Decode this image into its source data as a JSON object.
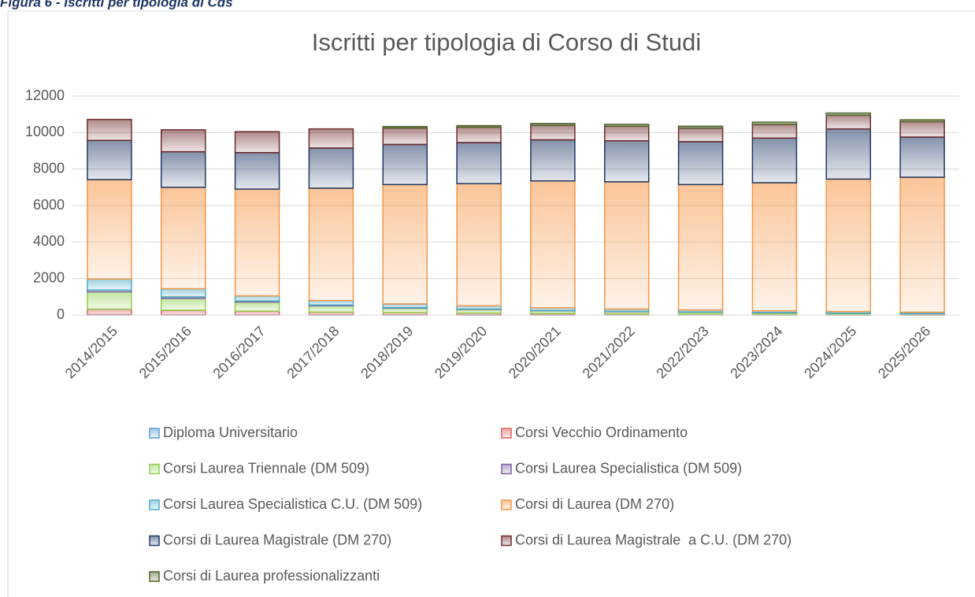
{
  "caption": "Figura 6 - Iscritti per tipologia di Cds",
  "chart_data": {
    "type": "stacked_bar",
    "title": "Iscritti per tipologia di Corso di Studi",
    "categories": [
      "2014/2015",
      "2015/2016",
      "2016/2017",
      "2017/2018",
      "2018/2019",
      "2019/2020",
      "2020/2021",
      "2021/2022",
      "2022/2023",
      "2023/2024",
      "2024/2025",
      "2025/2026"
    ],
    "series": [
      {
        "name": "Diploma Universitario",
        "color": "#5b9bd5",
        "values": [
          20,
          10,
          10,
          5,
          5,
          5,
          5,
          5,
          5,
          5,
          5,
          5
        ]
      },
      {
        "name": "Corsi Vecchio Ordinamento",
        "color": "#e06060",
        "values": [
          300,
          250,
          200,
          150,
          120,
          100,
          80,
          60,
          50,
          40,
          30,
          20
        ]
      },
      {
        "name": "Corsi Laurea Triennale (DM 509)",
        "color": "#92d050",
        "values": [
          950,
          650,
          500,
          350,
          250,
          200,
          150,
          120,
          100,
          80,
          60,
          40
        ]
      },
      {
        "name": "Corsi Laurea Specialistica (DM 509)",
        "color": "#8064a2",
        "values": [
          100,
          80,
          60,
          40,
          30,
          20,
          15,
          10,
          10,
          5,
          5,
          5
        ]
      },
      {
        "name": "Corsi Laurea Specialistica C.U. (DM 509)",
        "color": "#4bacc6",
        "values": [
          600,
          450,
          280,
          250,
          200,
          180,
          150,
          130,
          110,
          100,
          90,
          80
        ]
      },
      {
        "name": "Corsi di Laurea (DM 270)",
        "color": "#f79646",
        "values": [
          5450,
          5560,
          5850,
          6155,
          6545,
          6695,
          6950,
          6975,
          6875,
          7020,
          7260,
          7400
        ]
      },
      {
        "name": "Corsi di Laurea Magistrale (DM 270)",
        "color": "#1f3864",
        "values": [
          2150,
          1950,
          2000,
          2200,
          2200,
          2250,
          2250,
          2250,
          2350,
          2450,
          2750,
          2200
        ]
      },
      {
        "name": "Corsi di Laurea Magistrale  a C.U. (DM 270)",
        "color": "#6e2a2a",
        "values": [
          1150,
          1200,
          1150,
          1050,
          900,
          850,
          800,
          800,
          750,
          750,
          750,
          850
        ]
      },
      {
        "name": "Corsi di Laurea professionalizzanti",
        "color": "#4f6228",
        "values": [
          0,
          0,
          0,
          0,
          80,
          80,
          100,
          100,
          100,
          120,
          120,
          100
        ]
      }
    ],
    "ylim": [
      0,
      12000
    ],
    "yticks": [
      0,
      2000,
      4000,
      6000,
      8000,
      10000,
      12000
    ],
    "grid": true,
    "legend": "bottom"
  }
}
